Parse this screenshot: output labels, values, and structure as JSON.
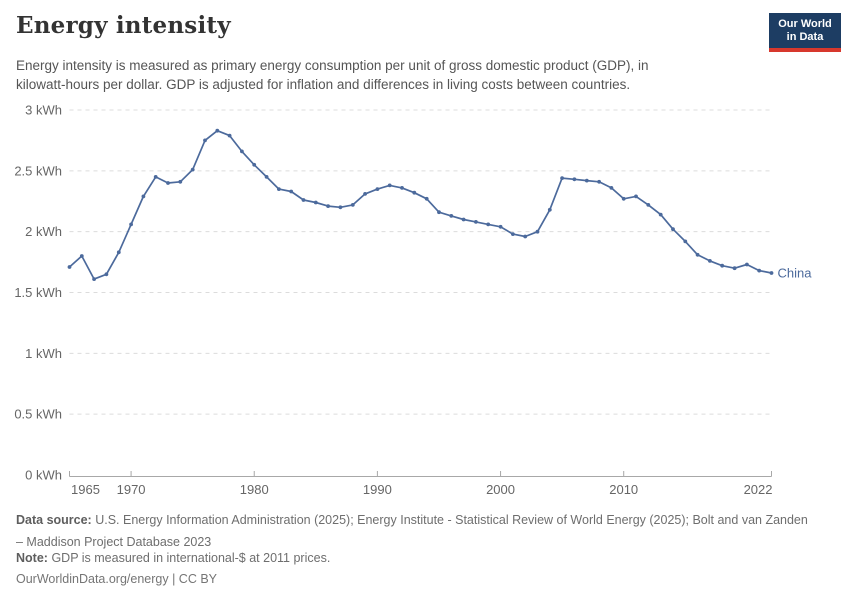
{
  "header": {
    "title": "Energy intensity",
    "subtitle_lines": [
      "Energy intensity is measured as primary energy consumption per unit of gross domestic product (GDP), in",
      "kilowatt-hours per dollar. GDP is adjusted for inflation and differences in living costs between countries."
    ],
    "logo": {
      "line1": "Our World",
      "line2": "in Data"
    }
  },
  "chart_data": {
    "type": "line",
    "title": "Energy intensity",
    "xlabel": "",
    "ylabel": "kilowatt-hours per dollar",
    "xlim": [
      1965,
      2022
    ],
    "ylim": [
      0,
      3
    ],
    "grid": "horizontal-dashed",
    "legend_position": "end-of-line",
    "x_ticks": [
      1965,
      1970,
      1980,
      1990,
      2000,
      2010,
      2022
    ],
    "x_tick_labels": [
      "1965",
      "1970",
      "1980",
      "1990",
      "2000",
      "2010",
      "2022"
    ],
    "y_ticks": [
      0,
      0.5,
      1,
      1.5,
      2,
      2.5,
      3
    ],
    "y_tick_labels": [
      "0 kWh",
      "0.5 kWh",
      "1 kWh",
      "1.5 kWh",
      "2 kWh",
      "2.5 kWh",
      "3 kWh"
    ],
    "series": [
      {
        "name": "China",
        "end_label": "China",
        "x": [
          1965,
          1966,
          1967,
          1968,
          1969,
          1970,
          1971,
          1972,
          1973,
          1974,
          1975,
          1976,
          1977,
          1978,
          1979,
          1980,
          1981,
          1982,
          1983,
          1984,
          1985,
          1986,
          1987,
          1988,
          1989,
          1990,
          1991,
          1992,
          1993,
          1994,
          1995,
          1996,
          1997,
          1998,
          1999,
          2000,
          2001,
          2002,
          2003,
          2004,
          2005,
          2006,
          2007,
          2008,
          2009,
          2010,
          2011,
          2012,
          2013,
          2014,
          2015,
          2016,
          2017,
          2018,
          2019,
          2020,
          2021,
          2022
        ],
        "values": [
          1.71,
          1.8,
          1.61,
          1.65,
          1.83,
          2.06,
          2.29,
          2.45,
          2.4,
          2.41,
          2.51,
          2.75,
          2.83,
          2.79,
          2.66,
          2.55,
          2.45,
          2.35,
          2.33,
          2.26,
          2.24,
          2.21,
          2.2,
          2.22,
          2.31,
          2.35,
          2.38,
          2.36,
          2.32,
          2.27,
          2.16,
          2.13,
          2.1,
          2.08,
          2.06,
          2.04,
          1.98,
          1.96,
          2.0,
          2.18,
          2.44,
          2.43,
          2.42,
          2.41,
          2.36,
          2.27,
          2.29,
          2.22,
          2.14,
          2.02,
          1.92,
          1.81,
          1.76,
          1.72,
          1.7,
          1.73,
          1.68,
          1.66
        ]
      }
    ]
  },
  "colors": {
    "line": "#4C6A9C",
    "grid": "#dcdcdc",
    "axis": "#a8a8a8",
    "tick_text": "#666666",
    "title": "#333333",
    "subtitle": "#555555",
    "logo_bg": "#1d3d63",
    "logo_bar": "#d7382d"
  },
  "footer": {
    "source_label": "Data source:",
    "source_line1": "U.S. Energy Information Administration (2025); Energy Institute - Statistical Review of World Energy (2025); Bolt and van Zanden",
    "source_line2": "– Maddison Project Database 2023",
    "note_label": "Note:",
    "note_text": "GDP is measured in international-$ at 2011 prices.",
    "license": "OurWorldinData.org/energy | CC BY"
  }
}
